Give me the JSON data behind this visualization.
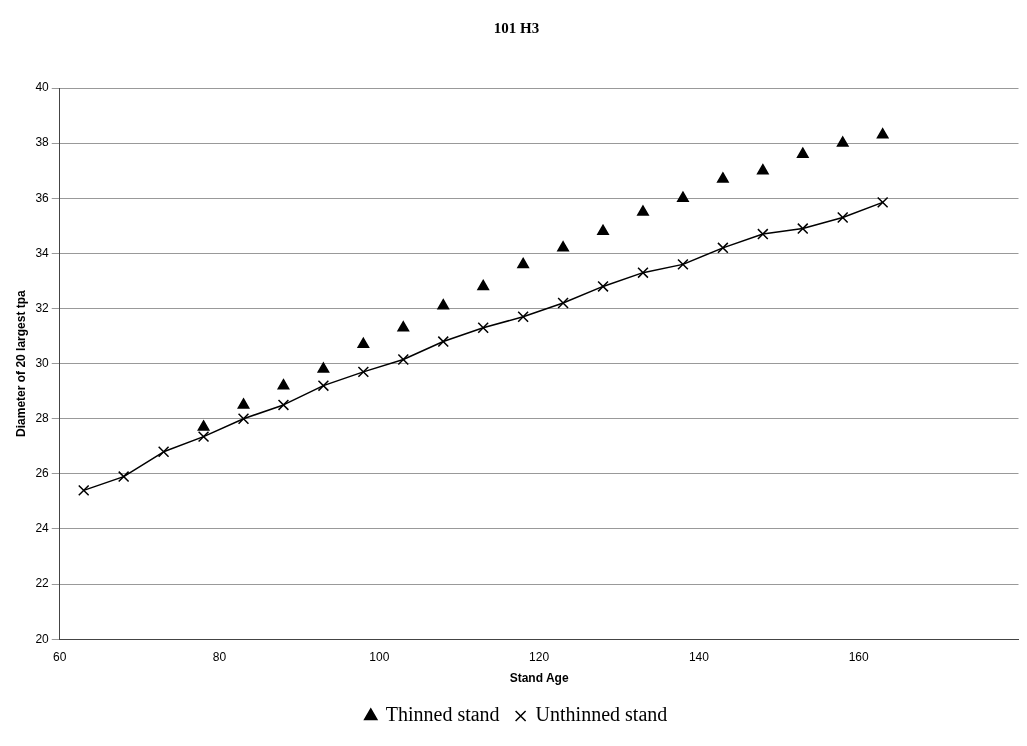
{
  "chart_data": {
    "type": "line",
    "title": "101 H3",
    "xlabel": "Stand Age",
    "ylabel": "Diameter of 20 largest tpa",
    "x": [
      63,
      68,
      73,
      78,
      83,
      88,
      93,
      98,
      103,
      108,
      113,
      118,
      123,
      128,
      133,
      138,
      143,
      148,
      153,
      158,
      163
    ],
    "series": [
      {
        "name": "Thinned stand",
        "type": "scatter",
        "marker": "triangle",
        "color": "#000000",
        "values": [
          null,
          null,
          null,
          27.7,
          28.5,
          29.2,
          29.8,
          30.7,
          31.3,
          32.1,
          32.8,
          33.6,
          34.2,
          34.8,
          35.5,
          36.0,
          36.7,
          37.0,
          37.6,
          38.0,
          38.3
        ]
      },
      {
        "name": "Unthinned stand",
        "marker": "cross",
        "color": "#000000",
        "values": [
          25.4,
          25.9,
          26.8,
          27.35,
          28.0,
          28.5,
          29.2,
          29.7,
          30.15,
          30.8,
          31.3,
          31.7,
          32.2,
          32.8,
          33.3,
          33.6,
          34.2,
          34.7,
          34.9,
          35.3,
          35.85
        ]
      }
    ],
    "xlim": [
      60,
      180
    ],
    "xticks": [
      60,
      80,
      100,
      120,
      140,
      160
    ],
    "ylim": [
      20,
      40
    ],
    "yticks": [
      20,
      22,
      24,
      26,
      28,
      30,
      32,
      34,
      36,
      38,
      40
    ],
    "grid": "y",
    "legend": "bottom"
  }
}
